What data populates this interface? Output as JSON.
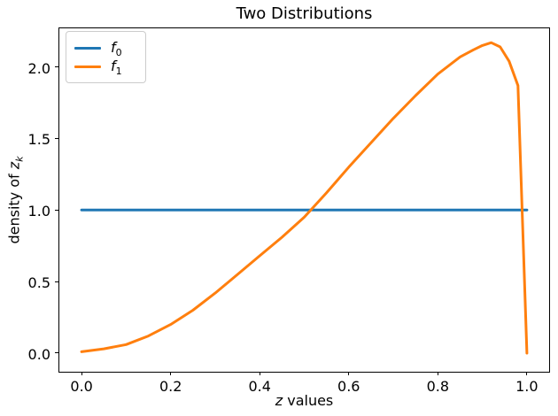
{
  "chart_data": {
    "type": "line",
    "title": "Two Distributions",
    "xlabel": {
      "var": "z",
      "rest": " values"
    },
    "ylabel": {
      "prefix": "density of ",
      "var": "z",
      "sub": "k"
    },
    "xlim": [
      -0.05,
      1.05
    ],
    "ylim": [
      -0.13,
      2.27
    ],
    "grid": false,
    "background": "#ffffff",
    "axes_edge_color": "#000000",
    "xticks": {
      "values": [
        0.0,
        0.2,
        0.4,
        0.6,
        0.8,
        1.0
      ],
      "labels": [
        "0.0",
        "0.2",
        "0.4",
        "0.6",
        "0.8",
        "1.0"
      ]
    },
    "yticks": {
      "values": [
        0.0,
        0.5,
        1.0,
        1.5,
        2.0
      ],
      "labels": [
        "0.0",
        "0.5",
        "1.0",
        "1.5",
        "2.0"
      ]
    },
    "legend": {
      "position": "upper left",
      "border_color": "#cccccc",
      "entries": [
        {
          "label_base": "f",
          "label_sub": "0",
          "color": "#1f77b4"
        },
        {
          "label_base": "f",
          "label_sub": "1",
          "color": "#ff7f0e"
        }
      ]
    },
    "series": [
      {
        "name": "f0",
        "color": "#1f77b4",
        "linewidth": 3,
        "x": [
          0.0,
          1.0
        ],
        "y": [
          1.0,
          1.0
        ]
      },
      {
        "name": "f1",
        "color": "#ff7f0e",
        "linewidth": 3,
        "x": [
          0.0,
          0.05,
          0.1,
          0.15,
          0.2,
          0.25,
          0.3,
          0.35,
          0.4,
          0.45,
          0.5,
          0.55,
          0.6,
          0.65,
          0.7,
          0.75,
          0.8,
          0.85,
          0.88,
          0.9,
          0.92,
          0.94,
          0.96,
          0.98,
          1.0
        ],
        "y": [
          0.01,
          0.03,
          0.06,
          0.12,
          0.2,
          0.3,
          0.42,
          0.55,
          0.68,
          0.81,
          0.95,
          1.12,
          1.3,
          1.47,
          1.64,
          1.8,
          1.95,
          2.07,
          2.12,
          2.15,
          2.17,
          2.14,
          2.04,
          1.87,
          0.0
        ]
      }
    ]
  }
}
